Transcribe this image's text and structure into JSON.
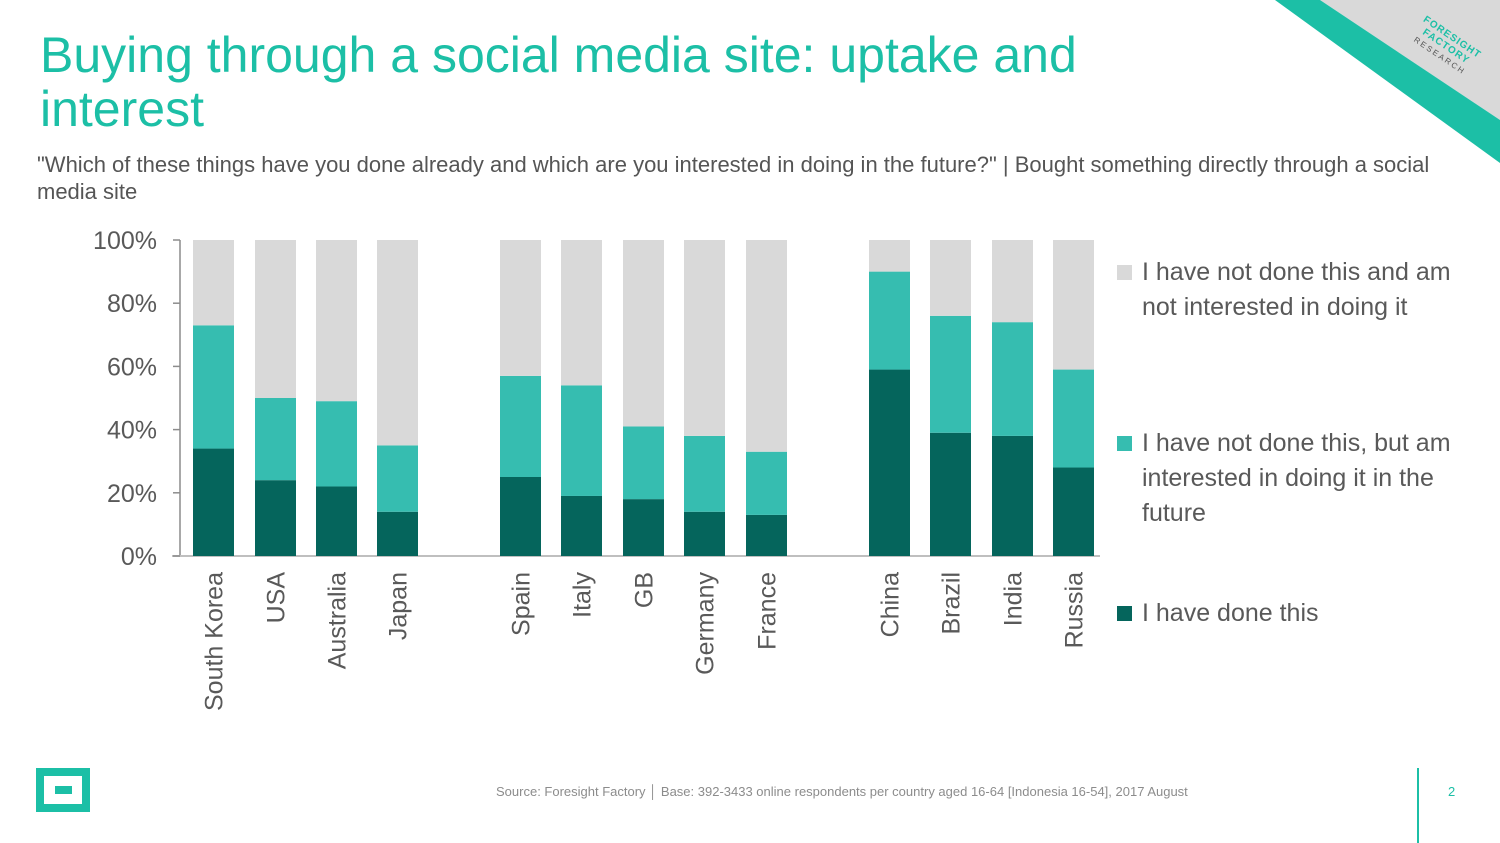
{
  "slide": {
    "title": "Buying through a social media site: uptake and interest",
    "subtitle": "\"Which of these things have you done already and which are you interested in doing in the future?\" |  Bought something directly through a social media site",
    "brand_tag": {
      "line1": "FORESIGHT",
      "line2": "FACTORY",
      "line3": "RESEARCH"
    },
    "footer": {
      "source": "Source: Foresight Factory │ Base:  392-3433 online respondents per country aged 16-64 [Indonesia 16-54],  2017 August",
      "page_number": "2"
    },
    "colors": {
      "accent": "#1cbfa6",
      "done": "#05655c",
      "interested": "#36bdb0",
      "not_interested": "#d9d9d9",
      "text": "#595959"
    },
    "icons": {
      "logo": "brand-square-logo-icon"
    }
  },
  "chart_data": {
    "type": "bar",
    "stacked": true,
    "percent_stacked": true,
    "title": "",
    "xlabel": "",
    "ylabel": "",
    "ylim": [
      0,
      100
    ],
    "yticks": [
      "0%",
      "20%",
      "40%",
      "60%",
      "80%",
      "100%"
    ],
    "grid": false,
    "legend_position": "right",
    "groups": [
      [
        "South Korea",
        "USA",
        "Australia",
        "Japan"
      ],
      [
        "Spain",
        "Italy",
        "GB",
        "Germany",
        "France"
      ],
      [
        "China",
        "Brazil",
        "India",
        "Russia"
      ]
    ],
    "categories": [
      "South Korea",
      "USA",
      "Australia",
      "Japan",
      "Spain",
      "Italy",
      "GB",
      "Germany",
      "France",
      "China",
      "Brazil",
      "India",
      "Russia"
    ],
    "series": [
      {
        "name": "I have done this",
        "color": "#05655c",
        "values": [
          34,
          24,
          22,
          14,
          25,
          19,
          18,
          14,
          13,
          59,
          39,
          38,
          28
        ]
      },
      {
        "name": "I have not done this, but am interested in doing it in the future",
        "color": "#36bdb0",
        "values": [
          39,
          26,
          27,
          21,
          32,
          35,
          23,
          24,
          20,
          31,
          37,
          36,
          31
        ]
      },
      {
        "name": "I have not done this and am not interested in doing it",
        "color": "#d9d9d9",
        "values": [
          27,
          50,
          51,
          65,
          43,
          46,
          59,
          62,
          67,
          10,
          24,
          26,
          41
        ]
      }
    ],
    "legend": [
      {
        "label": "I have not done this and am not interested in doing it",
        "color": "#d9d9d9"
      },
      {
        "label": "I have not done this, but am interested in doing it in the future",
        "color": "#36bdb0"
      },
      {
        "label": "I have done this",
        "color": "#05655c"
      }
    ]
  }
}
